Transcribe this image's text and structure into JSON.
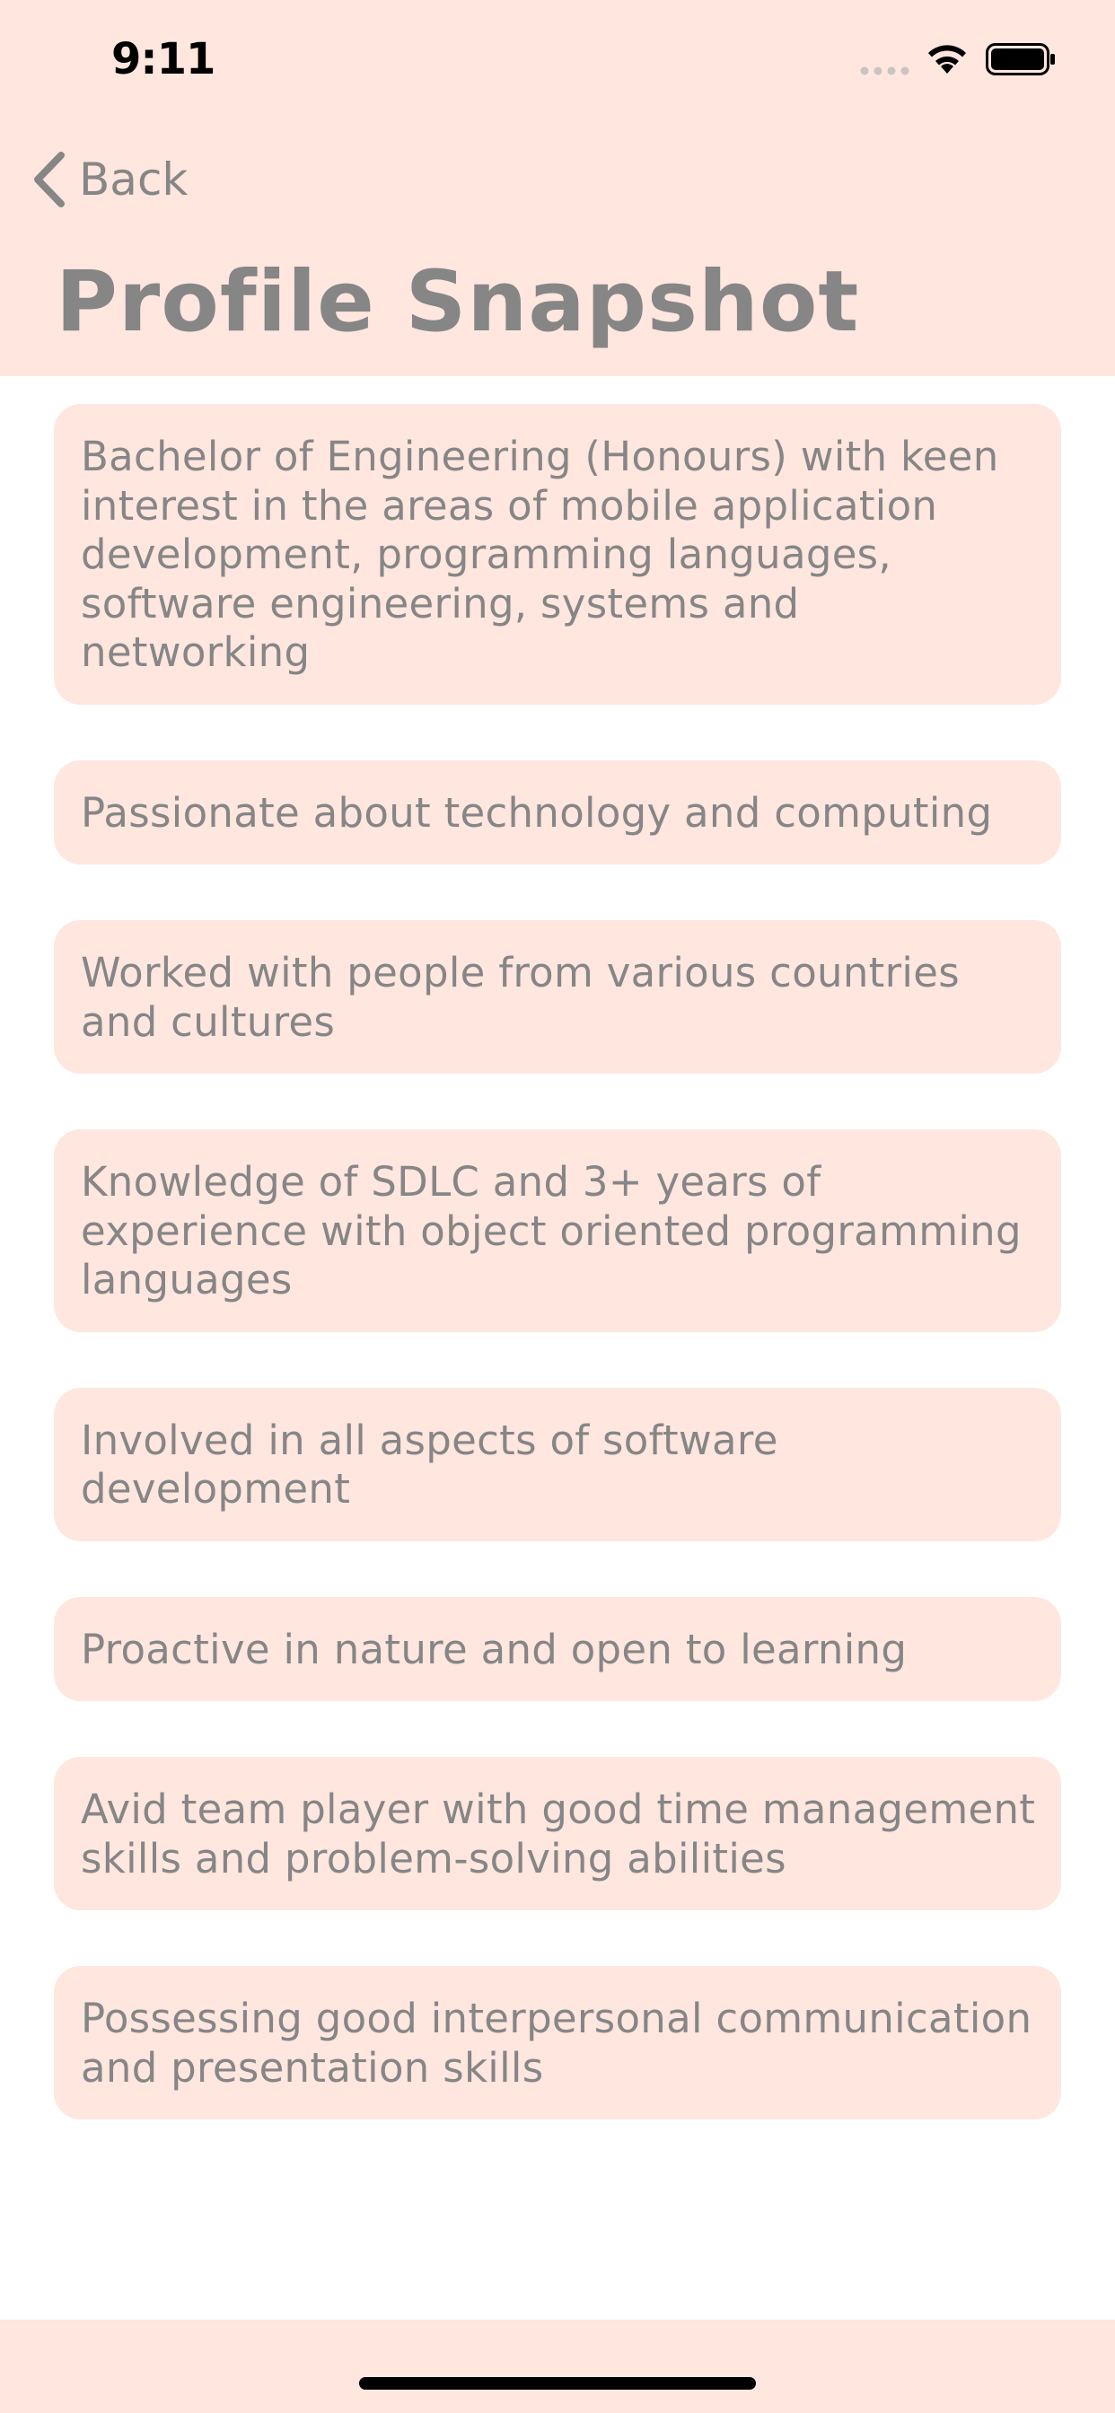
{
  "status_bar": {
    "time": "9:11",
    "icons": [
      "signal-icon",
      "wifi-icon",
      "battery-icon"
    ]
  },
  "nav": {
    "back_label": "Back",
    "back_icon": "chevron-left-icon",
    "title": "Profile Snapshot"
  },
  "colors": {
    "accent_background": "#ffe6df",
    "text": "#868686"
  },
  "items": [
    "Bachelor of Engineering (Honours) with keen interest in the areas of mobile application development, programming languages, software engineering, systems and networking",
    "Passionate about technology and computing",
    "Worked with people from various countries and cultures",
    "Knowledge of SDLC and 3+ years of experience with object oriented programming languages",
    "Involved in all aspects of software development",
    "Proactive in nature and open to learning",
    "Avid team player with good time management skills and problem-solving abilities",
    "Possessing good interpersonal communication and presentation skills"
  ]
}
